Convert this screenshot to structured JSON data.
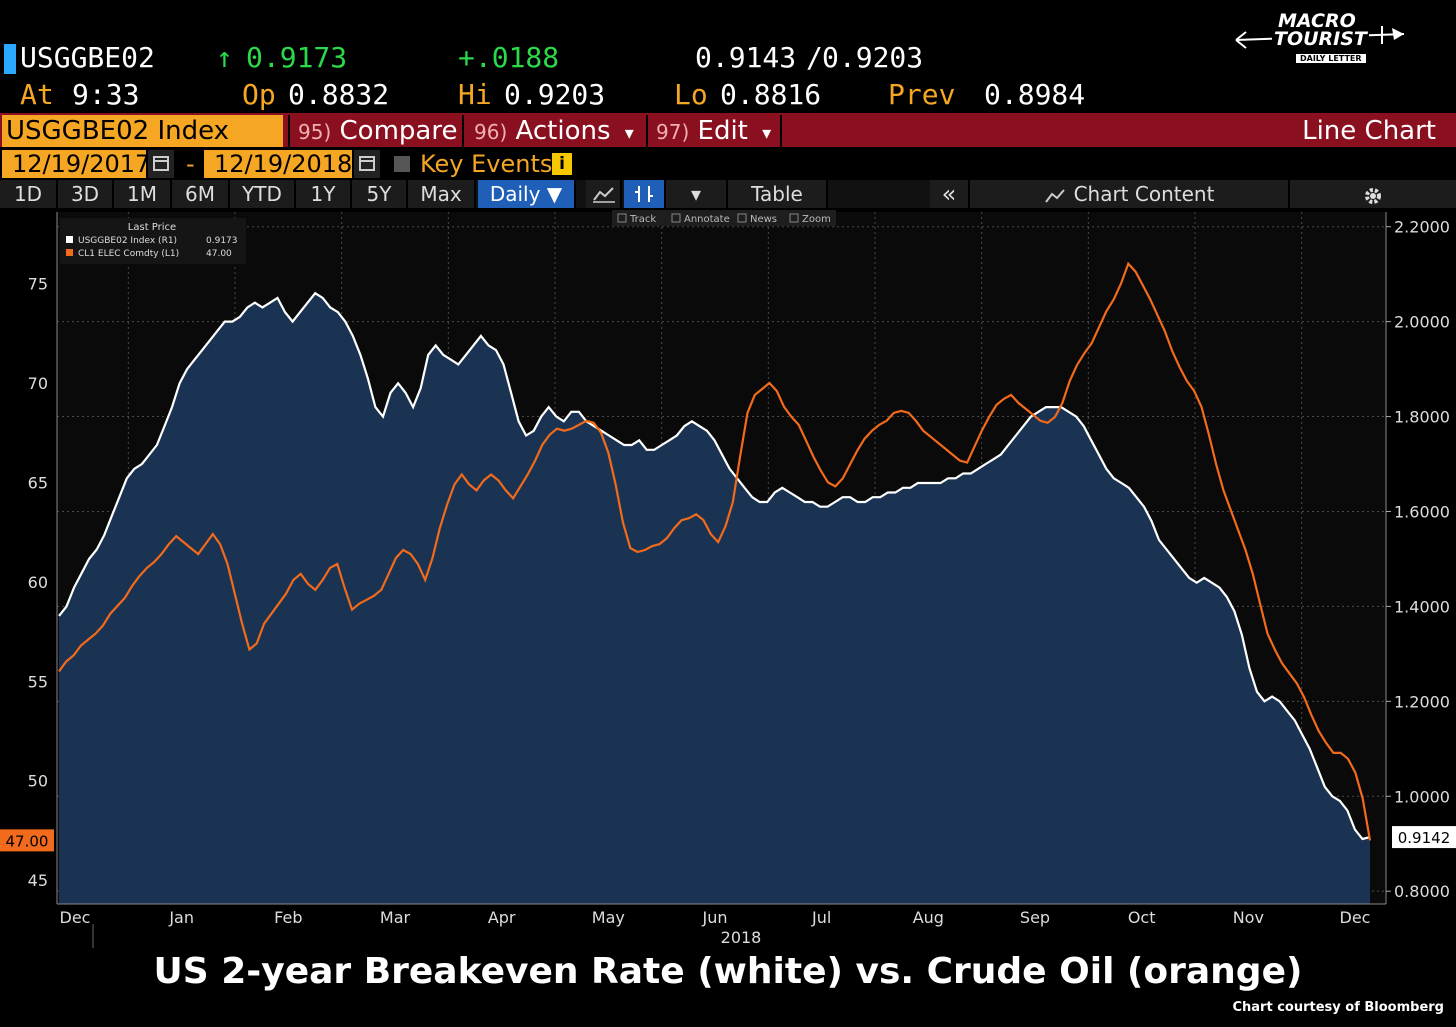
{
  "quote": {
    "ticker": "USGGBE02",
    "arrow": "↑",
    "last": "0.9173",
    "change": "+.0188",
    "bid": "0.9143",
    "separator": "/",
    "ask": "0.9203",
    "at_label": "At",
    "time": "9:33",
    "op_label": "Op",
    "open": "0.8832",
    "hi_label": "Hi",
    "high": "0.9203",
    "lo_label": "Lo",
    "low": "0.8816",
    "prev_label": "Prev",
    "prev": "0.8984"
  },
  "logo": {
    "line1": "MACRO",
    "line2": "TOURIST",
    "line3": "DAILY LETTER"
  },
  "toolbar": {
    "security": "USGGBE02 Index",
    "compare_num": "95)",
    "compare": "Compare",
    "actions_num": "96)",
    "actions": "Actions",
    "edit_num": "97)",
    "edit": "Edit",
    "dropdown": "▾",
    "chart_type": "Line Chart"
  },
  "dates": {
    "start": "12/19/2017",
    "dash": "-",
    "end": "12/19/2018",
    "key_events": "Key Events",
    "info": "i"
  },
  "periods": {
    "items": [
      "1D",
      "3D",
      "1M",
      "6M",
      "YTD",
      "1Y",
      "5Y",
      "Max"
    ],
    "frequency": "Daily ▼",
    "table": "Table",
    "collapse": "«",
    "chart_content": "Chart Content"
  },
  "tools": {
    "track": "Track",
    "annotate": "Annotate",
    "news": "News",
    "zoom": "Zoom"
  },
  "colors": {
    "white_series": "#ffffff",
    "orange_series": "#f26a1b",
    "area_fill": "#1a3352",
    "toolbar_red": "#8a1020",
    "security_orange": "#f5a623"
  },
  "chart_data": {
    "type": "line",
    "legend_title": "Last Price",
    "legend_position": "top-left",
    "grid": true,
    "x_axis_year": "2018",
    "x_ticks": [
      "Dec",
      "Jan",
      "Feb",
      "Mar",
      "Apr",
      "May",
      "Jun",
      "Jul",
      "Aug",
      "Sep",
      "Oct",
      "Nov",
      "Dec"
    ],
    "left_axis": {
      "ticks": [
        "75",
        "70",
        "65",
        "60",
        "55",
        "50",
        "45"
      ],
      "min": 43.8,
      "max": 78.6
    },
    "right_axis": {
      "ticks": [
        "2.2000",
        "2.0000",
        "1.8000",
        "1.6000",
        "1.4000",
        "1.2000",
        "1.0000",
        "0.8000"
      ],
      "min": 0.773,
      "max": 2.231
    },
    "series": [
      {
        "name": "USGGBE02 Index",
        "legend_suffix": "(R1)",
        "last_label": "0.9173",
        "axis_label": "0.9142",
        "axis": "right",
        "style": "area",
        "values": [
          1.38,
          1.4,
          1.44,
          1.47,
          1.5,
          1.52,
          1.55,
          1.59,
          1.63,
          1.67,
          1.69,
          1.7,
          1.72,
          1.74,
          1.78,
          1.82,
          1.87,
          1.9,
          1.92,
          1.94,
          1.96,
          1.98,
          2.0,
          2.0,
          2.01,
          2.03,
          2.04,
          2.03,
          2.04,
          2.05,
          2.02,
          2.0,
          2.02,
          2.04,
          2.06,
          2.05,
          2.03,
          2.02,
          2.0,
          1.97,
          1.93,
          1.88,
          1.82,
          1.8,
          1.85,
          1.87,
          1.85,
          1.82,
          1.86,
          1.93,
          1.95,
          1.93,
          1.92,
          1.91,
          1.93,
          1.95,
          1.97,
          1.95,
          1.94,
          1.91,
          1.85,
          1.79,
          1.76,
          1.77,
          1.8,
          1.82,
          1.8,
          1.79,
          1.81,
          1.81,
          1.79,
          1.78,
          1.77,
          1.76,
          1.75,
          1.74,
          1.74,
          1.75,
          1.73,
          1.73,
          1.74,
          1.75,
          1.76,
          1.78,
          1.79,
          1.78,
          1.77,
          1.75,
          1.72,
          1.69,
          1.67,
          1.65,
          1.63,
          1.62,
          1.62,
          1.64,
          1.65,
          1.64,
          1.63,
          1.62,
          1.62,
          1.61,
          1.61,
          1.62,
          1.63,
          1.63,
          1.62,
          1.62,
          1.63,
          1.63,
          1.64,
          1.64,
          1.65,
          1.65,
          1.66,
          1.66,
          1.66,
          1.66,
          1.67,
          1.67,
          1.68,
          1.68,
          1.69,
          1.7,
          1.71,
          1.72,
          1.74,
          1.76,
          1.78,
          1.8,
          1.81,
          1.82,
          1.82,
          1.82,
          1.81,
          1.8,
          1.78,
          1.75,
          1.72,
          1.69,
          1.67,
          1.66,
          1.65,
          1.63,
          1.61,
          1.58,
          1.54,
          1.52,
          1.5,
          1.48,
          1.46,
          1.45,
          1.46,
          1.45,
          1.44,
          1.42,
          1.39,
          1.34,
          1.27,
          1.22,
          1.2,
          1.21,
          1.2,
          1.18,
          1.16,
          1.13,
          1.1,
          1.06,
          1.02,
          1.0,
          0.99,
          0.97,
          0.93,
          0.91,
          0.914
        ]
      },
      {
        "name": "CL1 ELEC Comdty",
        "legend_suffix": "(L1)",
        "last_label": "47.00",
        "axis_label": "47.00",
        "axis": "left",
        "style": "line",
        "values": [
          55.5,
          56.0,
          56.3,
          56.8,
          57.1,
          57.4,
          57.8,
          58.4,
          58.8,
          59.2,
          59.8,
          60.3,
          60.7,
          61.0,
          61.4,
          61.9,
          62.3,
          62.0,
          61.7,
          61.4,
          61.9,
          62.4,
          61.9,
          60.9,
          59.4,
          57.9,
          56.6,
          56.9,
          57.9,
          58.4,
          58.9,
          59.4,
          60.1,
          60.4,
          59.9,
          59.6,
          60.1,
          60.7,
          60.9,
          59.7,
          58.6,
          58.9,
          59.1,
          59.3,
          59.6,
          60.4,
          61.2,
          61.6,
          61.4,
          60.9,
          60.1,
          61.2,
          62.7,
          63.9,
          64.9,
          65.4,
          64.9,
          64.6,
          65.1,
          65.4,
          65.1,
          64.6,
          64.2,
          64.8,
          65.4,
          66.1,
          66.9,
          67.4,
          67.7,
          67.6,
          67.7,
          67.9,
          68.1,
          68.0,
          67.5,
          66.5,
          64.9,
          63.0,
          61.7,
          61.5,
          61.6,
          61.8,
          61.9,
          62.2,
          62.7,
          63.1,
          63.2,
          63.4,
          63.1,
          62.4,
          62.0,
          62.8,
          64.0,
          66.3,
          68.5,
          69.4,
          69.7,
          70.0,
          69.6,
          68.8,
          68.3,
          67.9,
          67.1,
          66.3,
          65.6,
          65.0,
          64.8,
          65.2,
          65.9,
          66.6,
          67.2,
          67.6,
          67.9,
          68.1,
          68.5,
          68.6,
          68.5,
          68.1,
          67.6,
          67.3,
          67.0,
          66.7,
          66.4,
          66.1,
          66.0,
          66.8,
          67.6,
          68.3,
          68.9,
          69.2,
          69.4,
          69.0,
          68.7,
          68.4,
          68.1,
          68.0,
          68.3,
          69.0,
          70.1,
          70.9,
          71.5,
          72.0,
          72.8,
          73.6,
          74.2,
          75.0,
          76.0,
          75.6,
          74.9,
          74.2,
          73.4,
          72.6,
          71.6,
          70.8,
          70.1,
          69.6,
          68.8,
          67.4,
          65.9,
          64.6,
          63.6,
          62.6,
          61.6,
          60.4,
          58.9,
          57.4,
          56.6,
          55.9,
          55.4,
          54.9,
          54.2,
          53.3,
          52.5,
          51.9,
          51.4,
          51.4,
          51.1,
          50.4,
          49.1,
          47.0
        ]
      }
    ]
  },
  "caption": "US 2-year Breakeven Rate (white) vs. Crude Oil (orange)",
  "credit": "Chart courtesy of Bloomberg"
}
